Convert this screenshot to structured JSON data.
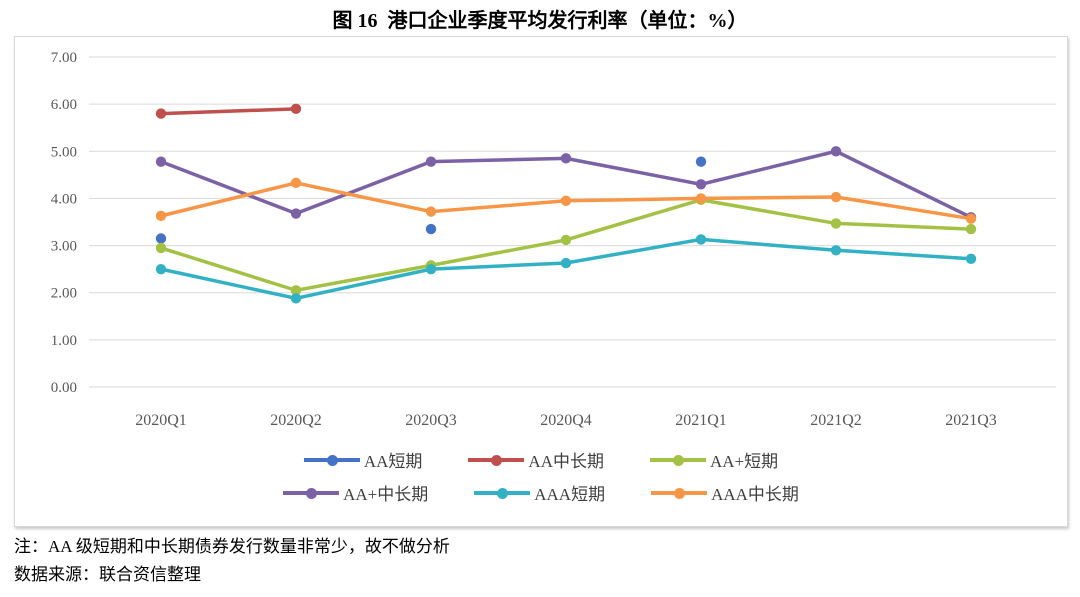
{
  "page": {
    "title": "图 16  港口企业季度平均发行利率（单位：%）",
    "note": "注：AA 级短期和中长期债券发行数量非常少，故不做分析",
    "source": "数据来源：联合资信整理"
  },
  "chart_data": {
    "type": "line",
    "title": "图 16  港口企业季度平均发行利率（单位：%）",
    "unit": "%",
    "categories": [
      "2020Q1",
      "2020Q2",
      "2020Q3",
      "2020Q4",
      "2021Q1",
      "2021Q2",
      "2021Q3"
    ],
    "series": [
      {
        "name": "AA短期",
        "color": "#4472C4",
        "values": [
          3.15,
          null,
          3.35,
          null,
          4.78,
          null,
          null
        ]
      },
      {
        "name": "AA中长期",
        "color": "#C0504D",
        "values": [
          5.8,
          5.9,
          null,
          null,
          null,
          null,
          null
        ]
      },
      {
        "name": "AA+短期",
        "color": "#A3C144",
        "values": [
          2.95,
          2.05,
          2.58,
          3.12,
          3.97,
          3.47,
          3.35
        ]
      },
      {
        "name": "AA+中长期",
        "color": "#7B61A5",
        "values": [
          4.78,
          3.68,
          4.78,
          4.85,
          4.3,
          5.0,
          3.6
        ]
      },
      {
        "name": "AAA短期",
        "color": "#33B1C4",
        "values": [
          2.5,
          1.88,
          2.5,
          2.63,
          3.13,
          2.9,
          2.72
        ]
      },
      {
        "name": "AAA中长期",
        "color": "#F79646",
        "values": [
          3.63,
          4.33,
          3.72,
          3.95,
          4.0,
          4.03,
          3.57
        ]
      }
    ],
    "ylim": [
      0,
      7
    ],
    "ytick_step": 1,
    "ytick_labels": [
      "0.00",
      "1.00",
      "2.00",
      "3.00",
      "4.00",
      "5.00",
      "6.00",
      "7.00"
    ],
    "grid": true,
    "grid_color": "#D9D9D9",
    "axis_label_color": "#595959",
    "legend_position": "bottom",
    "legend_rows": [
      [
        0,
        1,
        2
      ],
      [
        3,
        4,
        5
      ]
    ],
    "marker": "circle",
    "missing_data_shown_as": "gaps"
  }
}
